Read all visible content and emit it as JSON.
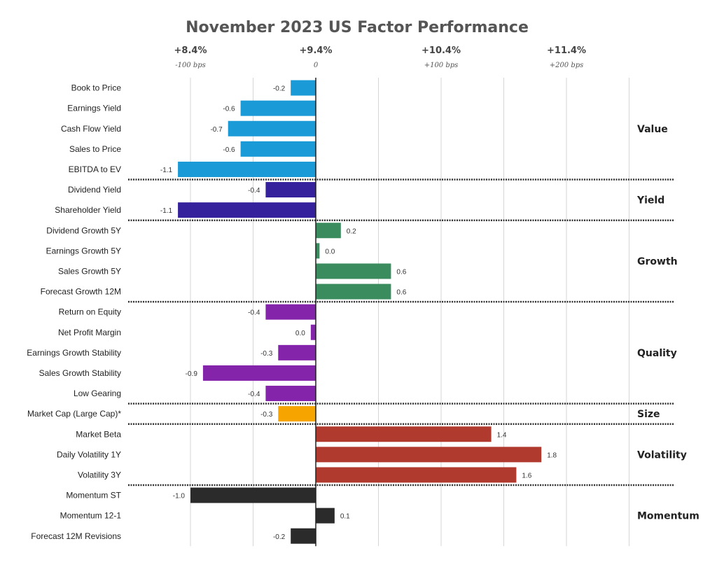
{
  "chart_data": {
    "type": "bar",
    "orientation": "horizontal",
    "title": "November 2023 US Factor Performance",
    "xlabel": "",
    "ylabel": "",
    "xlim": [
      -1.0,
      2.5
    ],
    "grid": true,
    "top_axis": [
      {
        "value": -1.0,
        "label": "+8.4%",
        "sublabel": "-100 bps"
      },
      {
        "value": 0.0,
        "label": "+9.4%",
        "sublabel": "0"
      },
      {
        "value": 1.0,
        "label": "+10.4%",
        "sublabel": "+100 bps"
      },
      {
        "value": 2.0,
        "label": "+11.4%",
        "sublabel": "+200 bps"
      }
    ],
    "groups": [
      {
        "name": "Value",
        "color": "#1a9ad6",
        "factors": [
          {
            "label": "Book to Price",
            "value": -0.2,
            "value_label": "-0.2"
          },
          {
            "label": "Earnings Yield",
            "value": -0.6,
            "value_label": "-0.6"
          },
          {
            "label": "Cash Flow Yield",
            "value": -0.7,
            "value_label": "-0.7"
          },
          {
            "label": "Sales to Price",
            "value": -0.6,
            "value_label": "-0.6"
          },
          {
            "label": "EBITDA to EV",
            "value": -1.1,
            "value_label": "-1.1"
          }
        ]
      },
      {
        "name": "Yield",
        "color": "#35219c",
        "factors": [
          {
            "label": "Dividend Yield",
            "value": -0.4,
            "value_label": "-0.4"
          },
          {
            "label": "Shareholder Yield",
            "value": -1.1,
            "value_label": "-1.1"
          }
        ]
      },
      {
        "name": "Growth",
        "color": "#3a8c5f",
        "factors": [
          {
            "label": "Dividend Growth 5Y",
            "value": 0.2,
            "value_label": "0.2"
          },
          {
            "label": "Earnings Growth 5Y",
            "value": 0.03,
            "value_label": "0.0"
          },
          {
            "label": "Sales Growth 5Y",
            "value": 0.6,
            "value_label": "0.6"
          },
          {
            "label": "Forecast Growth 12M",
            "value": 0.6,
            "value_label": "0.6"
          }
        ]
      },
      {
        "name": "Quality",
        "color": "#8424aa",
        "factors": [
          {
            "label": "Return on Equity",
            "value": -0.4,
            "value_label": "-0.4"
          },
          {
            "label": "Net Profit Margin",
            "value": -0.04,
            "value_label": "0.0"
          },
          {
            "label": "Earnings Growth Stability",
            "value": -0.3,
            "value_label": "-0.3"
          },
          {
            "label": "Sales Growth Stability",
            "value": -0.9,
            "value_label": "-0.9"
          },
          {
            "label": "Low Gearing",
            "value": -0.4,
            "value_label": "-0.4"
          }
        ]
      },
      {
        "name": "Size",
        "color": "#f5a400",
        "factors": [
          {
            "label": "Market Cap (Large Cap)*",
            "value": -0.3,
            "value_label": "-0.3"
          }
        ]
      },
      {
        "name": "Volatility",
        "color": "#b03a2e",
        "factors": [
          {
            "label": "Market Beta",
            "value": 1.4,
            "value_label": "1.4"
          },
          {
            "label": "Daily Volatility 1Y",
            "value": 1.8,
            "value_label": "1.8"
          },
          {
            "label": "Volatility 3Y",
            "value": 1.6,
            "value_label": "1.6"
          }
        ]
      },
      {
        "name": "Momentum",
        "color": "#2b2b2b",
        "factors": [
          {
            "label": "Momentum ST",
            "value": -1.0,
            "value_label": "-1.0"
          },
          {
            "label": "Momentum 12-1",
            "value": 0.15,
            "value_label": "0.1"
          },
          {
            "label": "Forecast 12M Revisions",
            "value": -0.2,
            "value_label": "-0.2"
          }
        ]
      }
    ]
  }
}
